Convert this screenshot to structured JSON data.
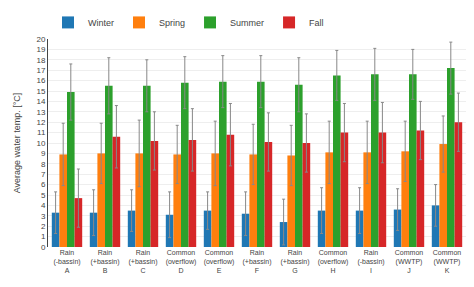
{
  "chart_data": {
    "type": "bar",
    "categories": [
      "Rain\n(-bassin)\nA",
      "Rain\n(+bassin)\nB",
      "Rain\n(+bassin)\nC",
      "Common\n(overflow)\nD",
      "Common\n(overflow)\nE",
      "Rain\n(+bassin)\nF",
      "Rain\n(+bassin)\nG",
      "Common\n(overflow)\nH",
      "Rain\n(-bassin)\nI",
      "Common\n(WWTP)\nJ",
      "Common\n(WWTP)\nK"
    ],
    "ylabel": "Average water temp. [°C]",
    "series": [
      {
        "name": "Winter",
        "values": [
          3.3,
          3.3,
          3.5,
          3.1,
          3.5,
          3.2,
          2.4,
          3.5,
          3.5,
          3.6,
          4.0
        ],
        "errors": [
          2.0,
          2.2,
          2.0,
          2.2,
          1.8,
          2.1,
          2.2,
          2.2,
          2.2,
          2.0,
          2.0
        ]
      },
      {
        "name": "Spring",
        "values": [
          8.9,
          9.0,
          9.0,
          8.9,
          9.0,
          8.9,
          8.8,
          9.1,
          9.1,
          9.2,
          9.9
        ],
        "errors": [
          3.0,
          2.9,
          3.2,
          2.8,
          3.1,
          2.9,
          2.9,
          3.0,
          3.0,
          2.9,
          2.7
        ]
      },
      {
        "name": "Summer",
        "values": [
          14.9,
          15.5,
          15.5,
          15.8,
          15.9,
          15.9,
          15.6,
          16.5,
          16.6,
          16.6,
          17.2
        ],
        "errors": [
          2.7,
          2.7,
          2.5,
          2.5,
          2.5,
          2.5,
          2.6,
          2.4,
          2.5,
          2.4,
          2.5
        ]
      },
      {
        "name": "Fall",
        "values": [
          4.7,
          10.6,
          10.2,
          10.3,
          10.8,
          10.1,
          10.0,
          11.0,
          11.0,
          11.2,
          12.0
        ],
        "errors": [
          2.8,
          3.0,
          2.8,
          3.0,
          3.0,
          2.8,
          2.8,
          2.8,
          2.9,
          2.8,
          2.8
        ]
      }
    ],
    "ylim": [
      0,
      20
    ],
    "yticks": [
      0,
      1,
      2,
      3,
      4,
      5,
      6,
      7,
      8,
      9,
      10,
      11,
      12,
      13,
      14,
      15,
      16,
      17,
      18,
      19,
      20
    ],
    "grid": true,
    "legend": "upper left"
  }
}
